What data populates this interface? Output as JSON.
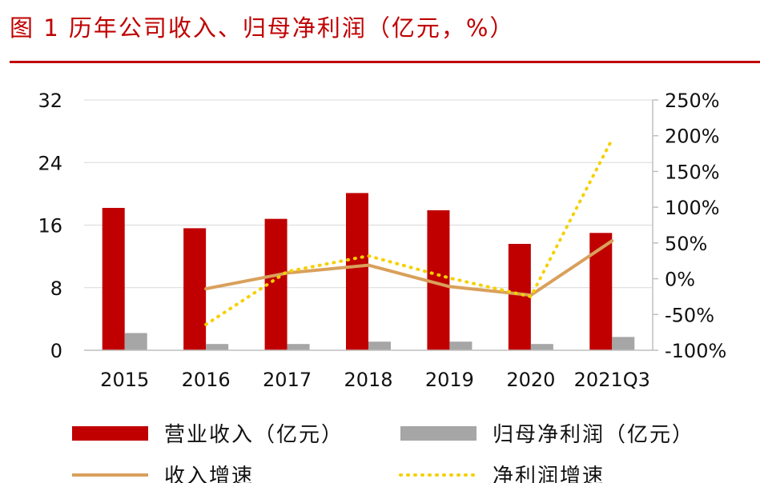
{
  "figure": {
    "title": "图 1 历年公司收入、归母净利润（亿元，%）",
    "accent_color": "#c00000"
  },
  "chart_data": {
    "type": "bar",
    "categories": [
      "2015",
      "2016",
      "2017",
      "2018",
      "2019",
      "2020",
      "2021Q3"
    ],
    "series": [
      {
        "name": "营业收入（亿元）",
        "kind": "bar",
        "axis": "left",
        "color": "#c00000",
        "values": [
          18.2,
          15.6,
          16.8,
          20.1,
          17.9,
          13.6,
          15.0
        ]
      },
      {
        "name": "归母净利润（亿元）",
        "kind": "bar",
        "axis": "left",
        "color": "#a6a6a6",
        "values": [
          2.2,
          0.8,
          0.8,
          1.1,
          1.1,
          0.8,
          1.7
        ]
      },
      {
        "name": "收入增速",
        "kind": "line",
        "axis": "right",
        "color": "#d9a05b",
        "values": [
          null,
          -14,
          8,
          19,
          -11,
          -23,
          53
        ]
      },
      {
        "name": "净利润增速",
        "kind": "dotted-line",
        "axis": "right",
        "color": "#f5d000",
        "values": [
          null,
          -64,
          10,
          32,
          1,
          -25,
          195
        ]
      }
    ],
    "y_left": {
      "ylim": [
        0,
        32
      ],
      "ticks": [
        0,
        8,
        16,
        24,
        32
      ],
      "tick_labels": [
        "0",
        "8",
        "16",
        "24",
        "32"
      ]
    },
    "y_right": {
      "ylim": [
        -100,
        250
      ],
      "ticks": [
        -100,
        -50,
        0,
        50,
        100,
        150,
        200,
        250
      ],
      "tick_labels": [
        "-100%",
        "-50%",
        "0%",
        "50%",
        "100%",
        "150%",
        "200%",
        "250%"
      ]
    },
    "grid": "horizontal",
    "legend": "bottom"
  }
}
